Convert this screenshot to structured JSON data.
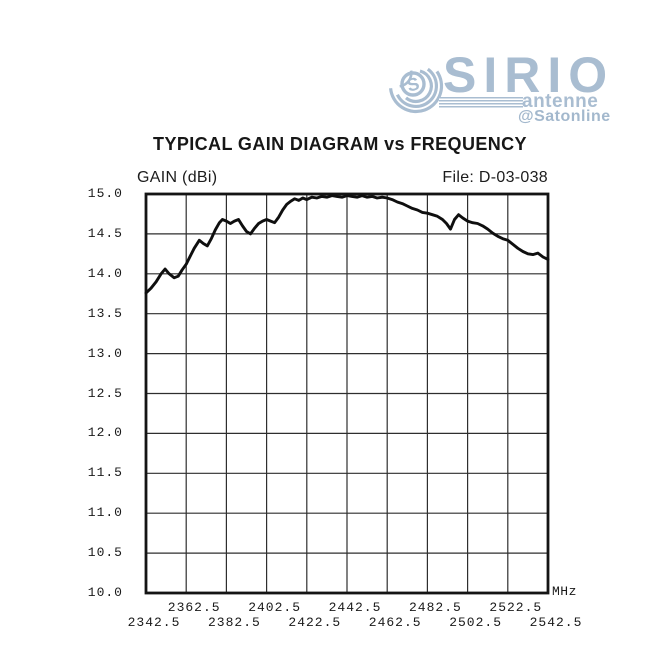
{
  "logo": {
    "brand": "SIRIO",
    "sub_brand": "antenne",
    "handle": "@Satonline",
    "color": "#a9bdd1",
    "mark_icon": "sirio-s-signal-icon"
  },
  "title": "TYPICAL GAIN DIAGRAM vs FREQUENCY",
  "chart_header": {
    "left_label": "GAIN (dBi)",
    "file_label": "File:  D-03-038"
  },
  "chart_data": {
    "type": "line",
    "title": "TYPICAL GAIN DIAGRAM vs FREQUENCY",
    "ylabel": "GAIN (dBi)",
    "x_unit": "MHz",
    "xlim": [
      2342.5,
      2542.5
    ],
    "ylim": [
      10.0,
      15.0
    ],
    "x_grid_step_mhz": 20,
    "y_grid_step_dbi": 0.5,
    "grid": true,
    "legend": "none",
    "line_color": "#0f0f0f",
    "grid_color": "#2e2e2e",
    "border_color": "#141414",
    "y_ticks": [
      "15.0",
      "14.5",
      "14.0",
      "13.5",
      "13.0",
      "12.5",
      "12.0",
      "11.5",
      "11.0",
      "10.5",
      "10.0"
    ],
    "x_ticks_upper": [
      "2362.5",
      "2402.5",
      "2442.5",
      "2482.5",
      "2522.5"
    ],
    "x_ticks_lower": [
      "2342.5",
      "2382.5",
      "2422.5",
      "2462.5",
      "2502.5",
      "2542.5"
    ],
    "series": [
      {
        "name": "gain_dBi",
        "x": [
          2342.5,
          2345,
          2347.5,
          2350,
          2352,
          2354,
          2356.5,
          2358.5,
          2360.5,
          2362.5,
          2364.5,
          2366.5,
          2369,
          2371,
          2373,
          2375,
          2377,
          2379,
          2380.5,
          2382.5,
          2384.5,
          2386.5,
          2388.5,
          2390.5,
          2392.5,
          2394.5,
          2396.5,
          2398.5,
          2400.5,
          2402.5,
          2404.5,
          2406.5,
          2408.5,
          2410.5,
          2412.5,
          2414.5,
          2416.5,
          2418.5,
          2420.5,
          2422.5,
          2425,
          2427.5,
          2430,
          2432.5,
          2435,
          2437.5,
          2440,
          2442.5,
          2445,
          2447.5,
          2450,
          2452.5,
          2455,
          2457.5,
          2460,
          2462.5,
          2465,
          2467.5,
          2470,
          2472.5,
          2475,
          2477.5,
          2480,
          2482.5,
          2485,
          2487.5,
          2490,
          2492,
          2494,
          2496,
          2498,
          2500,
          2502.5,
          2505,
          2507.5,
          2510,
          2512.5,
          2515,
          2517.5,
          2520,
          2522.5,
          2525,
          2527.5,
          2530,
          2532.5,
          2535,
          2537.5,
          2540,
          2542.5
        ],
        "y": [
          13.76,
          13.82,
          13.9,
          14.0,
          14.06,
          14.0,
          13.95,
          13.97,
          14.05,
          14.12,
          14.22,
          14.32,
          14.42,
          14.38,
          14.35,
          14.44,
          14.55,
          14.64,
          14.68,
          14.66,
          14.63,
          14.66,
          14.68,
          14.6,
          14.53,
          14.5,
          14.57,
          14.63,
          14.66,
          14.68,
          14.66,
          14.64,
          14.71,
          14.8,
          14.87,
          14.91,
          14.94,
          14.92,
          14.95,
          14.93,
          14.96,
          14.95,
          14.97,
          14.96,
          14.98,
          14.97,
          14.96,
          14.98,
          14.97,
          14.96,
          14.98,
          14.96,
          14.97,
          14.95,
          14.96,
          14.95,
          14.93,
          14.9,
          14.88,
          14.85,
          14.82,
          14.8,
          14.77,
          14.76,
          14.74,
          14.72,
          14.68,
          14.63,
          14.56,
          14.68,
          14.74,
          14.7,
          14.66,
          14.64,
          14.63,
          14.6,
          14.56,
          14.51,
          14.47,
          14.44,
          14.42,
          14.37,
          14.32,
          14.28,
          14.25,
          14.24,
          14.26,
          14.21,
          14.18
        ]
      }
    ]
  }
}
